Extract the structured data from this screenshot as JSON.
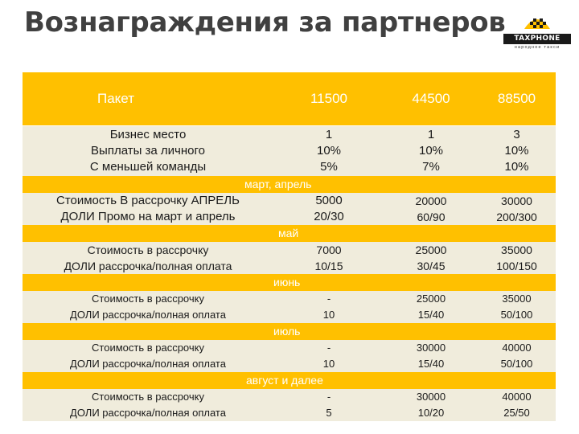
{
  "title": "Вознаграждения за партнеров",
  "logo": {
    "brand": "TAXPHONE",
    "tagline": "народное такси"
  },
  "table": {
    "header": {
      "label": "Пакет",
      "p1": "11500",
      "p2": "44500",
      "p3": "88500"
    },
    "block1": {
      "labels": [
        "Бизнес место",
        "Выплаты за личного",
        "С меньшей команды"
      ],
      "c1": [
        "1",
        "10%",
        "5%"
      ],
      "c2": [
        "1",
        "10%",
        "7%"
      ],
      "c3": [
        "3",
        "10%",
        "10%"
      ]
    },
    "band1": "март, апрель",
    "block2": {
      "labels": [
        "Стоимость В рассрочку АПРЕЛЬ",
        "ДОЛИ Промо на март и апрель"
      ],
      "c1": [
        "5000",
        "20/30"
      ],
      "c2": [
        "20000",
        "60/90"
      ],
      "c3": [
        "30000",
        "200/300"
      ]
    },
    "band2": "май",
    "block3": {
      "labels": [
        "Стоимость в рассрочку",
        "ДОЛИ рассрочка/полная оплата"
      ],
      "c1": [
        "7000",
        "10/15"
      ],
      "c2": [
        "25000",
        "30/45"
      ],
      "c3": [
        "35000",
        "100/150"
      ]
    },
    "band3": "июнь",
    "block4": {
      "labels": [
        "Стоимость в рассрочку",
        "ДОЛИ рассрочка/полная оплата"
      ],
      "c1": [
        "-",
        "10"
      ],
      "c2": [
        "25000",
        "15/40"
      ],
      "c3": [
        "35000",
        "50/100"
      ]
    },
    "band4": "июль",
    "block5": {
      "labels": [
        "Стоимость в рассрочку",
        "ДОЛИ рассрочка/полная оплата"
      ],
      "c1": [
        "-",
        "10"
      ],
      "c2": [
        "30000",
        "15/40"
      ],
      "c3": [
        "40000",
        "50/100"
      ]
    },
    "band5": "август и далее",
    "block6": {
      "labels": [
        "Стоимость в рассрочку",
        "ДОЛИ рассрочка/полная оплата"
      ],
      "c1": [
        "-",
        "5"
      ],
      "c2": [
        "30000",
        "10/20"
      ],
      "c3": [
        "40000",
        "25/50"
      ]
    }
  },
  "colors": {
    "gold": "#ffc000",
    "light_row": "#f0ecdc",
    "title": "#404040"
  }
}
